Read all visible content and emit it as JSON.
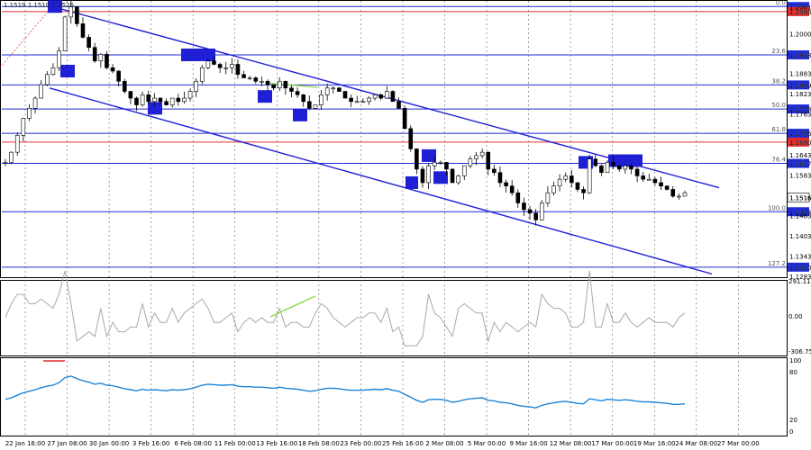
{
  "header": {
    "ohlc_text": "1.1519 1.1510 1.1526"
  },
  "chart_data": {
    "type": "candlestick",
    "symbol_colors": {
      "up": "#000000",
      "down": "#000000",
      "channel": "#1f1fd6",
      "price_tag": "#1f2bd8",
      "resistance_tag": "#e32c2c",
      "macd": "#a9a9a9",
      "rsi": "#1e86d8",
      "divergence": "#8fd84a"
    },
    "price_axis": {
      "ticks": [
        "1.2081",
        "1.2066",
        "1.2000",
        "1.1938",
        "1.1883",
        "1.1849",
        "1.1823",
        "1.1778",
        "1.1763",
        "1.1706",
        "1.1680",
        "1.1643",
        "1.1617",
        "1.1583",
        "1.1516",
        "1.1474",
        "1.1463",
        "1.1403",
        "1.1343",
        "1.1310",
        "1.1283"
      ],
      "ylim": [
        1.1283,
        1.2095
      ]
    },
    "price_tags": [
      {
        "value": "1.2081",
        "color": "#1f2bd8"
      },
      {
        "value": "1.2066",
        "color": "#e32c2c"
      },
      {
        "value": "1.1938",
        "color": "#1f2bd8"
      },
      {
        "value": "1.1849",
        "color": "#1f2bd8"
      },
      {
        "value": "1.1778",
        "color": "#1f2bd8"
      },
      {
        "value": "1.1706",
        "color": "#1f2bd8"
      },
      {
        "value": "1.1680",
        "color": "#e32c2c"
      },
      {
        "value": "1.1617",
        "color": "#1f2bd8"
      },
      {
        "value": "1.1516",
        "color": "#ffffff"
      },
      {
        "value": "1.1474",
        "color": "#1f2bd8"
      },
      {
        "value": "1.1310",
        "color": "#1f2bd8"
      }
    ],
    "fib_levels": [
      {
        "label": "0.0",
        "price": 1.2081
      },
      {
        "label": "23.6",
        "price": 1.1938
      },
      {
        "label": "38.2",
        "price": 1.1849
      },
      {
        "label": "50.0",
        "price": 1.1778
      },
      {
        "label": "61.8",
        "price": 1.1706
      },
      {
        "label": "76.4",
        "price": 1.1617
      },
      {
        "label": "100.0",
        "price": 1.1474
      },
      {
        "label": "127.2",
        "price": 1.131
      }
    ],
    "horizontal_lines": [
      {
        "price": 1.2081,
        "color": "#1f2bd8"
      },
      {
        "price": 1.2066,
        "color": "#e32c2c"
      },
      {
        "price": 1.1938,
        "color": "#1f2bd8"
      },
      {
        "price": 1.1849,
        "color": "#1f2bd8"
      },
      {
        "price": 1.1778,
        "color": "#1f2bd8"
      },
      {
        "price": 1.1706,
        "color": "#1f2bd8"
      },
      {
        "price": 1.168,
        "color": "#e32c2c"
      },
      {
        "price": 1.1617,
        "color": "#1f2bd8"
      },
      {
        "price": 1.1474,
        "color": "#1f2bd8"
      },
      {
        "price": 1.131,
        "color": "#1f2bd8"
      }
    ],
    "time_axis": [
      "22 Jan 16:00",
      "27 Jan 08:00",
      "30 Jan 00:00",
      "3 Feb 16:00",
      "6 Feb 08:00",
      "11 Feb 00:00",
      "13 Feb 16:00",
      "18 Feb 08:00",
      "23 Feb 00:00",
      "25 Feb 16:00",
      "2 Mar 08:00",
      "5 Mar 00:00",
      "9 Mar 16:00",
      "12 Mar 08:00",
      "17 Mar 00:00",
      "19 Mar 16:00",
      "24 Mar 08:00",
      "27 Mar 00:00"
    ],
    "close_series": [
      1.162,
      1.165,
      1.17,
      1.175,
      1.178,
      1.181,
      1.185,
      1.188,
      1.19,
      1.195,
      1.205,
      1.208,
      1.203,
      1.199,
      1.196,
      1.192,
      1.194,
      1.19,
      1.189,
      1.186,
      1.183,
      1.181,
      1.179,
      1.182,
      1.18,
      1.181,
      1.18,
      1.179,
      1.181,
      1.18,
      1.181,
      1.183,
      1.186,
      1.19,
      1.192,
      1.191,
      1.19,
      1.19,
      1.191,
      1.188,
      1.187,
      1.187,
      1.186,
      1.186,
      1.185,
      1.184,
      1.186,
      1.184,
      1.183,
      1.182,
      1.18,
      1.178,
      1.179,
      1.182,
      1.184,
      1.184,
      1.183,
      1.181,
      1.18,
      1.18,
      1.18,
      1.181,
      1.182,
      1.181,
      1.183,
      1.18,
      1.178,
      1.172,
      1.166,
      1.16,
      1.156,
      1.161,
      1.162,
      1.162,
      1.16,
      1.156,
      1.158,
      1.161,
      1.163,
      1.164,
      1.165,
      1.16,
      1.159,
      1.156,
      1.155,
      1.153,
      1.15,
      1.148,
      1.147,
      1.145,
      1.15,
      1.153,
      1.155,
      1.157,
      1.158,
      1.156,
      1.154,
      1.153,
      1.163,
      1.161,
      1.159,
      1.162,
      1.161,
      1.16,
      1.161,
      1.16,
      1.158,
      1.157,
      1.157,
      1.156,
      1.155,
      1.154,
      1.152,
      1.152,
      1.153
    ],
    "rsi_axis": {
      "ticks": [
        "100",
        "80",
        "20",
        "0"
      ]
    },
    "macd_axis": {
      "ticks": [
        "291.1149",
        "0.00",
        "-306.75"
      ]
    }
  }
}
